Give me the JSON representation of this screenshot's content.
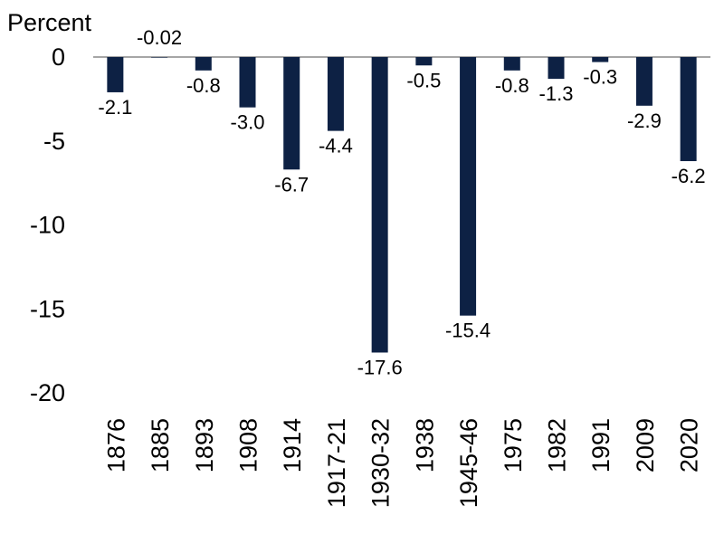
{
  "chart_data": {
    "type": "bar",
    "ylabel": "Percent",
    "categories": [
      "1876",
      "1885",
      "1893",
      "1908",
      "1914",
      "1917-21",
      "1930-32",
      "1938",
      "1945-46",
      "1975",
      "1982",
      "1991",
      "2009",
      "2020"
    ],
    "values": [
      -2.1,
      -0.02,
      -0.8,
      -3.0,
      -6.7,
      -4.4,
      -17.6,
      -0.5,
      -15.4,
      -0.8,
      -1.3,
      -0.3,
      -2.9,
      -6.2
    ],
    "value_labels": [
      "-2.1",
      "-0.02",
      "-0.8",
      "-3.0",
      "-6.7",
      "-4.4",
      "-17.6",
      "-0.5",
      "-15.4",
      "-0.8",
      "-1.3",
      "-0.3",
      "-2.9",
      "-6.2"
    ],
    "ylim": [
      -20,
      0
    ],
    "yticks": [
      0,
      -5,
      -10,
      -15,
      -20
    ],
    "ytick_labels": [
      "0",
      "-5",
      "-10",
      "-15",
      "-20"
    ],
    "bar_color": "#0d2144",
    "grid": false,
    "legend": "none"
  }
}
